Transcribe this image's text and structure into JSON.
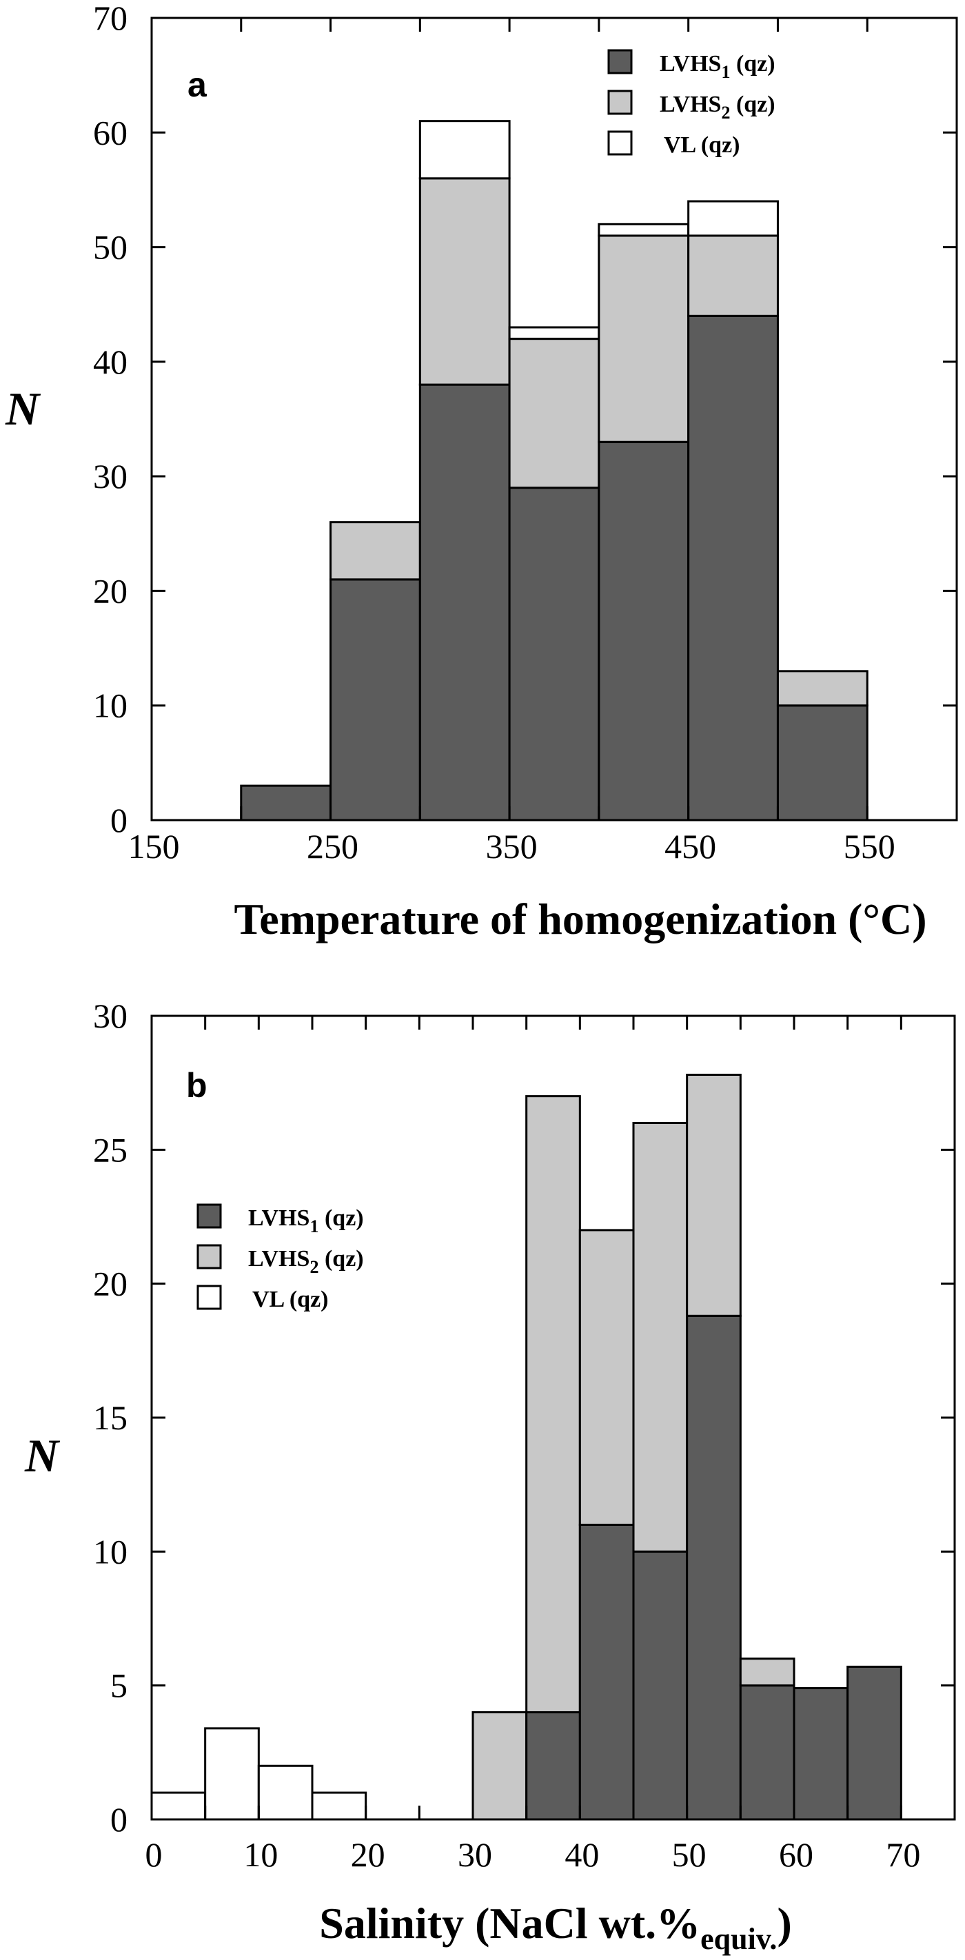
{
  "colors": {
    "lvhs1": "#5c5c5c",
    "lvhs2": "#c8c8c8",
    "vl": "#ffffff",
    "stroke": "#000000"
  },
  "legend": {
    "items": [
      {
        "key": "lvhs1",
        "base": "LVHS",
        "sub": "1",
        "suffix": " (qz)"
      },
      {
        "key": "lvhs2",
        "base": "LVHS",
        "sub": "2",
        "suffix": " (qz)"
      },
      {
        "key": "vl",
        "base": "VL (qz)",
        "sub": "",
        "suffix": ""
      }
    ]
  },
  "chart_data": [
    {
      "panel": "a",
      "type": "bar",
      "stacked": true,
      "title": "",
      "xlabel": "Temperature of homogenization (°C)",
      "ylabel": "N",
      "xlim": [
        150,
        600
      ],
      "ylim": [
        0,
        70
      ],
      "xticks": [
        150,
        250,
        350,
        450,
        550
      ],
      "xminor_ticks": [
        200,
        300,
        400,
        500
      ],
      "yticks": [
        0,
        10,
        20,
        30,
        40,
        50,
        60,
        70
      ],
      "legend_position": "upper right",
      "grid": false,
      "bin_width": 50,
      "categories": [
        "200-250",
        "250-300",
        "300-350",
        "350-400",
        "400-450",
        "450-500",
        "500-550"
      ],
      "bin_starts": [
        200,
        250,
        300,
        350,
        400,
        450,
        500
      ],
      "series": [
        {
          "name": "LVHS1 (qz)",
          "key": "lvhs1",
          "values": [
            3,
            21,
            38,
            29,
            33,
            44,
            10
          ]
        },
        {
          "name": "LVHS2 (qz)",
          "key": "lvhs2",
          "values": [
            0,
            5,
            18,
            13,
            18,
            7,
            3
          ]
        },
        {
          "name": "VL (qz)",
          "key": "vl",
          "values": [
            0,
            0,
            5,
            1,
            1,
            3,
            0
          ]
        }
      ],
      "totals": [
        3,
        26,
        61,
        43,
        52,
        54,
        13
      ]
    },
    {
      "panel": "b",
      "type": "bar",
      "stacked": true,
      "title": "",
      "xlabel": "Salinity (NaCl wt.%equiv.)",
      "xlabel_parts": {
        "main": "Salinity (NaCl wt.%",
        "sub": "equiv.",
        "end": ")"
      },
      "ylabel": "N",
      "xlim": [
        0,
        75
      ],
      "ylim": [
        0,
        30
      ],
      "xticks": [
        0,
        10,
        20,
        30,
        40,
        50,
        60,
        70
      ],
      "xminor_ticks": [
        5,
        15,
        25,
        35,
        45,
        55,
        65
      ],
      "yticks": [
        0,
        5,
        10,
        15,
        20,
        25,
        30
      ],
      "legend_position": "upper left",
      "grid": false,
      "bin_width": 5,
      "categories": [
        "0-5",
        "5-10",
        "10-15",
        "15-20",
        "30-35",
        "35-40",
        "40-45",
        "45-50",
        "50-55",
        "55-60",
        "60-65",
        "65-70"
      ],
      "bin_starts": [
        0,
        5,
        10,
        15,
        30,
        35,
        40,
        45,
        50,
        55,
        60,
        65
      ],
      "series": [
        {
          "name": "LVHS1 (qz)",
          "key": "lvhs1",
          "values": [
            0,
            0,
            0,
            0,
            0,
            4,
            11,
            10,
            18.8,
            5,
            4.9,
            5.7
          ]
        },
        {
          "name": "LVHS2 (qz)",
          "key": "lvhs2",
          "values": [
            0,
            0,
            0,
            0,
            4,
            23,
            11,
            16,
            9,
            1,
            0,
            0
          ]
        },
        {
          "name": "VL (qz)",
          "key": "vl",
          "values": [
            1,
            3.4,
            2,
            1,
            0,
            0,
            0,
            0,
            0,
            0,
            0,
            0
          ]
        }
      ],
      "totals": [
        1,
        3.4,
        2,
        1,
        4,
        27,
        22,
        26,
        27.8,
        6,
        4.9,
        5.7
      ]
    }
  ]
}
